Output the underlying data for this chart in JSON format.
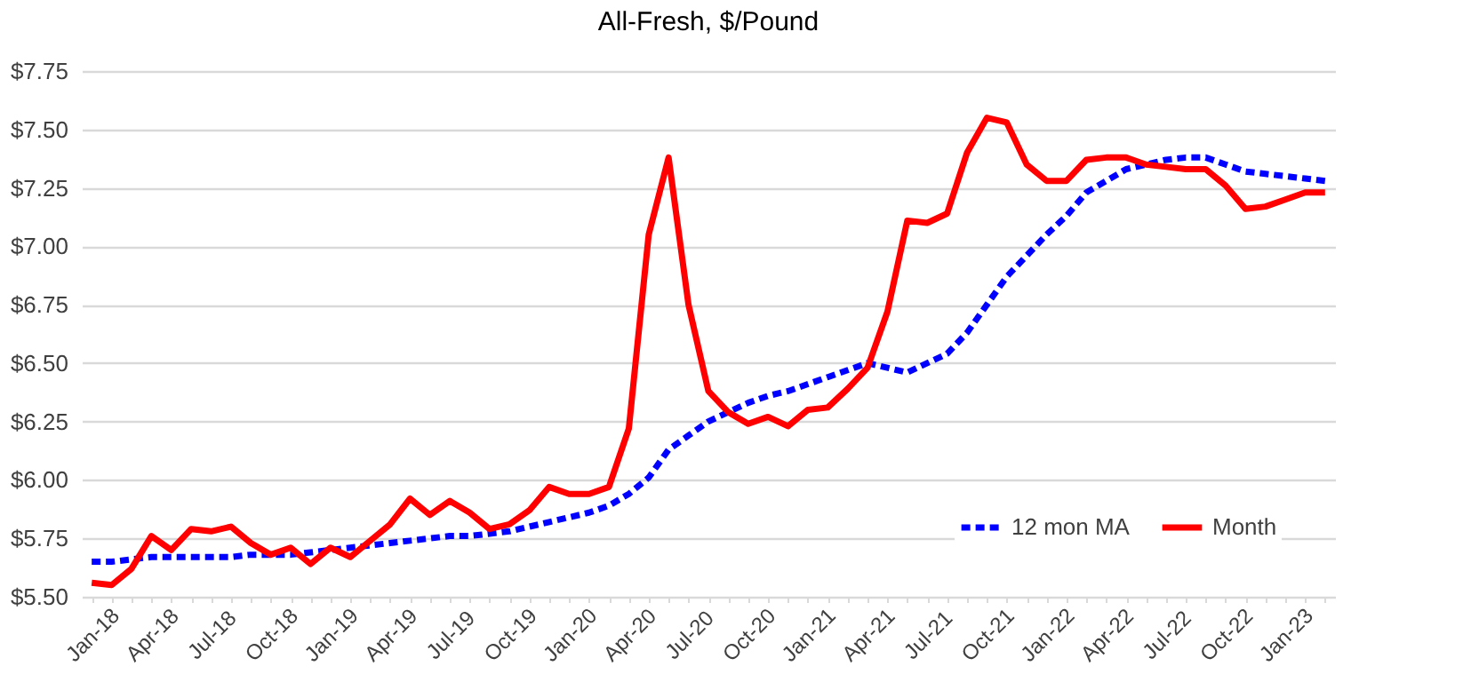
{
  "chart_data": {
    "type": "line",
    "title": "All-Fresh, $/Pound",
    "categories": [
      "Jan-18",
      null,
      null,
      "Apr-18",
      null,
      null,
      "Jul-18",
      null,
      null,
      "Oct-18",
      null,
      null,
      "Jan-19",
      null,
      null,
      "Apr-19",
      null,
      null,
      "Jul-19",
      null,
      null,
      "Oct-19",
      null,
      null,
      "Jan-20",
      null,
      null,
      "Apr-20",
      null,
      null,
      "Jul-20",
      null,
      null,
      "Oct-20",
      null,
      null,
      "Jan-21",
      null,
      null,
      "Apr-21",
      null,
      null,
      "Jul-21",
      null,
      null,
      "Oct-21",
      null,
      null,
      "Jan-22",
      null,
      null,
      "Apr-22",
      null,
      null,
      "Jul-22",
      null,
      null,
      "Oct-22",
      null,
      null,
      "Jan-23",
      null,
      null
    ],
    "series": [
      {
        "name": "12 mon MA",
        "color": "#0000ff",
        "line_style": "dashed",
        "values": [
          5.65,
          5.65,
          5.66,
          5.67,
          5.67,
          5.67,
          5.67,
          5.67,
          5.68,
          5.68,
          5.68,
          5.69,
          5.7,
          5.71,
          5.72,
          5.73,
          5.74,
          5.75,
          5.76,
          5.76,
          5.77,
          5.78,
          5.8,
          5.82,
          5.84,
          5.86,
          5.89,
          5.94,
          6.01,
          6.13,
          6.19,
          6.25,
          6.29,
          6.33,
          6.36,
          6.38,
          6.41,
          6.44,
          6.47,
          6.5,
          6.48,
          6.46,
          6.5,
          6.54,
          6.63,
          6.75,
          6.87,
          6.96,
          7.05,
          7.13,
          7.23,
          7.28,
          7.33,
          7.35,
          7.37,
          7.38,
          7.38,
          7.35,
          7.32,
          7.31,
          7.3,
          7.29,
          7.28
        ]
      },
      {
        "name": "Month",
        "color": "#ff0000",
        "line_style": "solid",
        "values": [
          5.56,
          5.55,
          5.62,
          5.76,
          5.7,
          5.79,
          5.78,
          5.8,
          5.73,
          5.68,
          5.71,
          5.64,
          5.71,
          5.67,
          5.74,
          5.81,
          5.92,
          5.85,
          5.91,
          5.86,
          5.79,
          5.81,
          5.87,
          5.97,
          5.94,
          5.94,
          5.97,
          6.22,
          7.05,
          7.38,
          6.75,
          6.38,
          6.29,
          6.24,
          6.27,
          6.23,
          6.3,
          6.31,
          6.39,
          6.48,
          6.72,
          7.11,
          7.1,
          7.14,
          7.4,
          7.55,
          7.53,
          7.35,
          7.28,
          7.28,
          7.37,
          7.38,
          7.38,
          7.35,
          7.34,
          7.33,
          7.33,
          7.26,
          7.16,
          7.17,
          7.2,
          7.23,
          7.23
        ]
      }
    ],
    "ylim": [
      5.5,
      7.75
    ],
    "yticks": [
      {
        "value": 5.5,
        "label": "$5.50"
      },
      {
        "value": 5.75,
        "label": "$5.75"
      },
      {
        "value": 6.0,
        "label": "$6.00"
      },
      {
        "value": 6.25,
        "label": "$6.25"
      },
      {
        "value": 6.5,
        "label": "$6.50"
      },
      {
        "value": 6.75,
        "label": "$6.75"
      },
      {
        "value": 7.0,
        "label": "$7.00"
      },
      {
        "value": 7.25,
        "label": "$7.25"
      },
      {
        "value": 7.5,
        "label": "$7.50"
      },
      {
        "value": 7.75,
        "label": "$7.75"
      }
    ],
    "grid": "y",
    "legend": "bottom right",
    "marker": "none"
  }
}
